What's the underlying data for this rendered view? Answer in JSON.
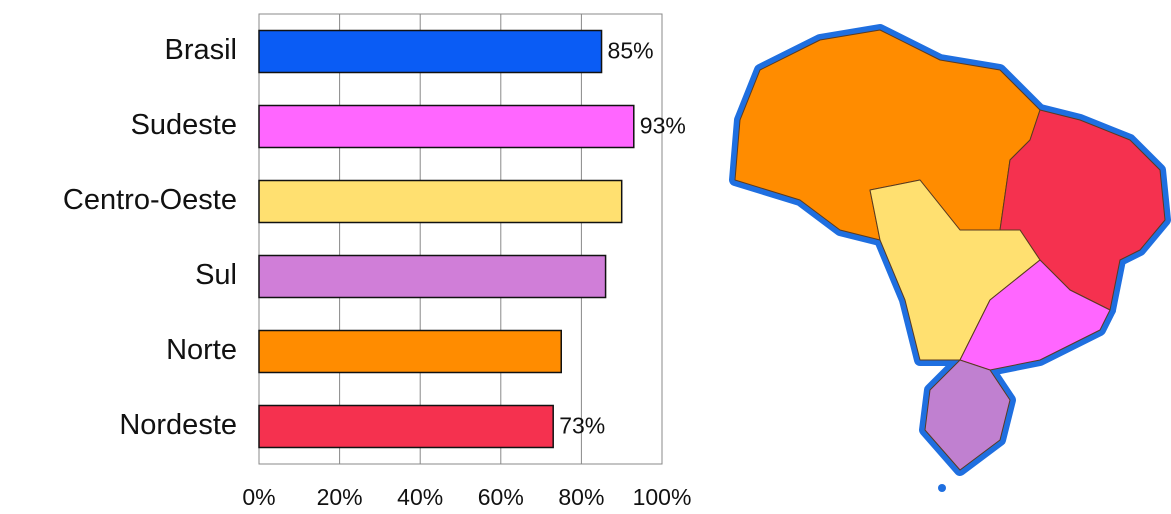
{
  "chart_data": {
    "type": "bar",
    "orientation": "horizontal",
    "categories": [
      "Brasil",
      "Sudeste",
      "Centro-Oeste",
      "Sul",
      "Norte",
      "Nordeste"
    ],
    "values": [
      85,
      93,
      90,
      86,
      75,
      73
    ],
    "value_labels": [
      "85%",
      "93%",
      null,
      null,
      null,
      "73%"
    ],
    "colors": [
      "#0a5cf5",
      "#ff66ff",
      "#ffe070",
      "#d07ed8",
      "#ff8c00",
      "#f5314f"
    ],
    "xlim": [
      0,
      100
    ],
    "xticks": [
      {
        "value": 0,
        "label": "0%"
      },
      {
        "value": 20,
        "label": "20%"
      },
      {
        "value": 40,
        "label": "40%"
      },
      {
        "value": 60,
        "label": "60%"
      },
      {
        "value": 80,
        "label": "80%"
      },
      {
        "value": 100,
        "label": "100%"
      }
    ],
    "grid": true
  }
}
